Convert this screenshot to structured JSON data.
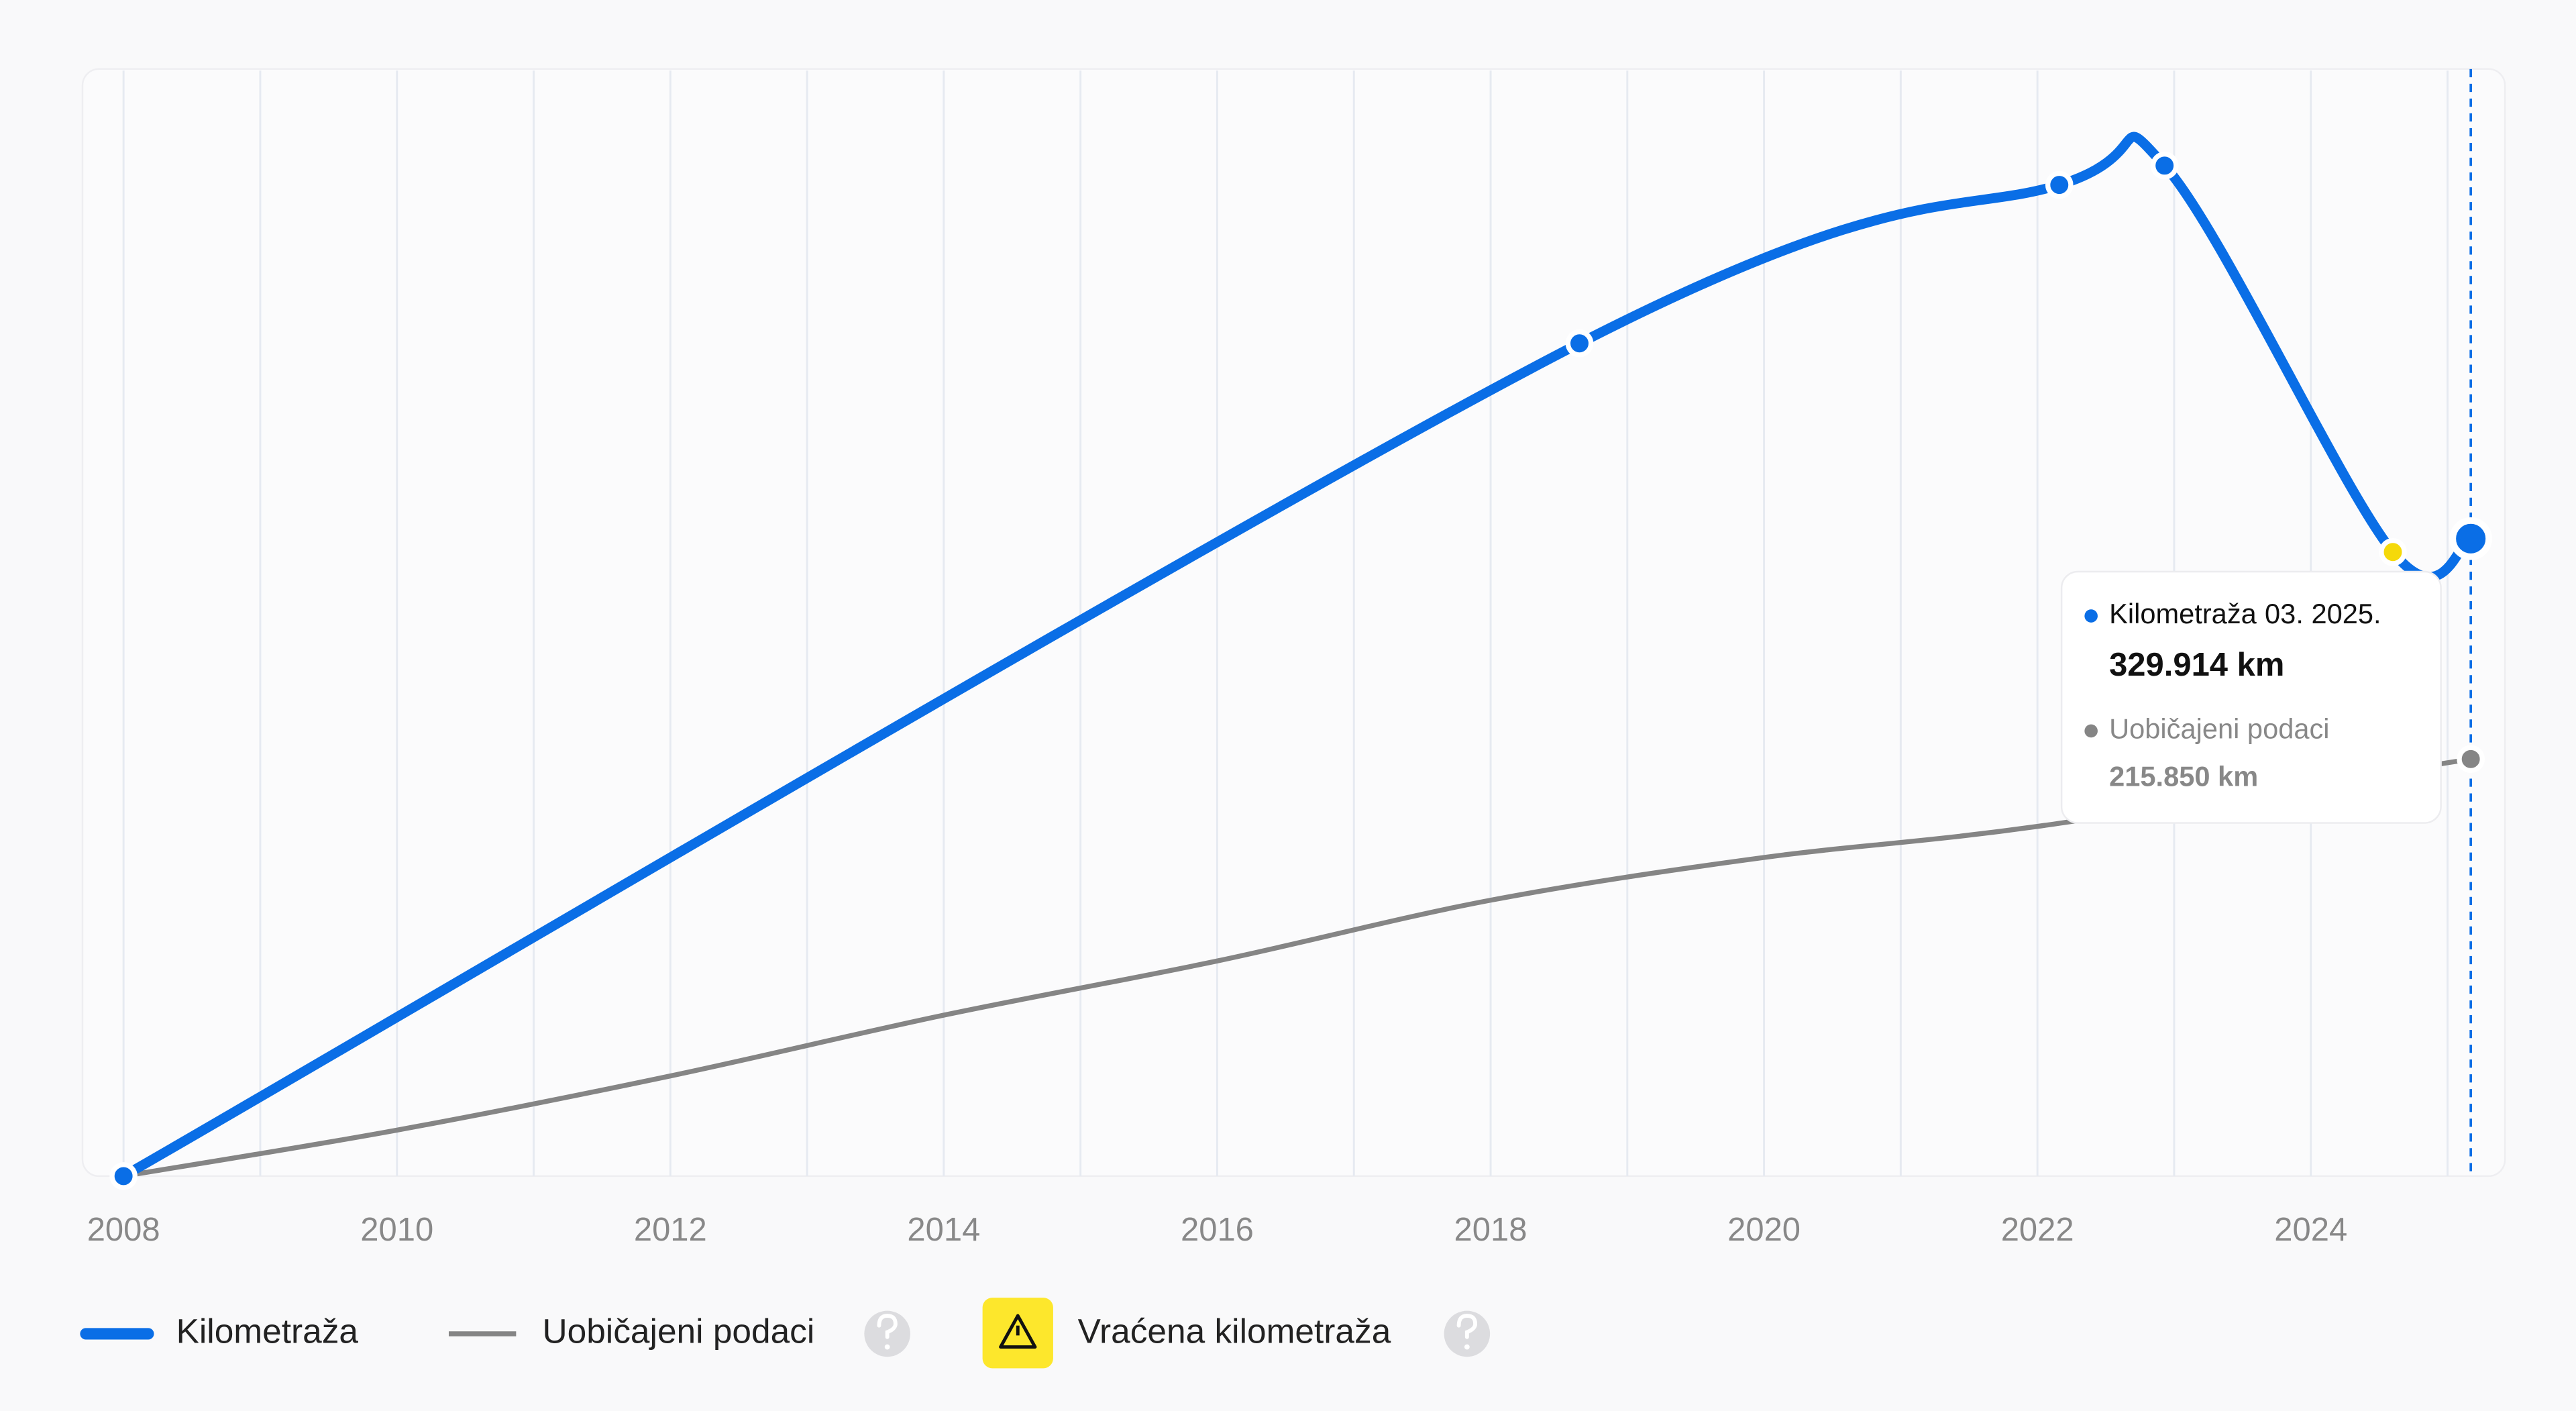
{
  "chart_data": {
    "type": "line",
    "xlim": [
      2007.7,
      2025.42
    ],
    "ylim": [
      0,
      573000
    ],
    "xticks": [
      2008,
      2010,
      2012,
      2014,
      2016,
      2018,
      2020,
      2022,
      2024
    ],
    "minor_xticks": [
      2009,
      2011,
      2013,
      2015,
      2017,
      2019,
      2021,
      2023,
      2025
    ],
    "grid": true,
    "series": [
      {
        "name": "Kilometraža",
        "color": "#0a6ee6",
        "x": [
          2008,
          2018.65,
          2022.16,
          2022.93,
          2024.6,
          2025.17
        ],
        "values": [
          0,
          431000,
          513000,
          523000,
          323000,
          329914
        ],
        "point_colors": [
          "#0a6ee6",
          "#0a6ee6",
          "#0a6ee6",
          "#0a6ee6",
          "#f5d90a",
          "#0a6ee6"
        ]
      },
      {
        "name": "Uobičajeni podaci",
        "color": "#858585",
        "x": [
          2008,
          2010,
          2012,
          2014,
          2016,
          2018,
          2020,
          2022,
          2025.17
        ],
        "values": [
          0,
          23800,
          51850,
          83300,
          111350,
          142800,
          164900,
          181000,
          215850
        ]
      }
    ],
    "annotation": {
      "label": "Vraćena kilometraža",
      "color": "#fde72c"
    },
    "tooltip": {
      "date": "03. 2025.",
      "value_labels": [
        "329.914 km",
        "215.850 km"
      ]
    }
  }
}
